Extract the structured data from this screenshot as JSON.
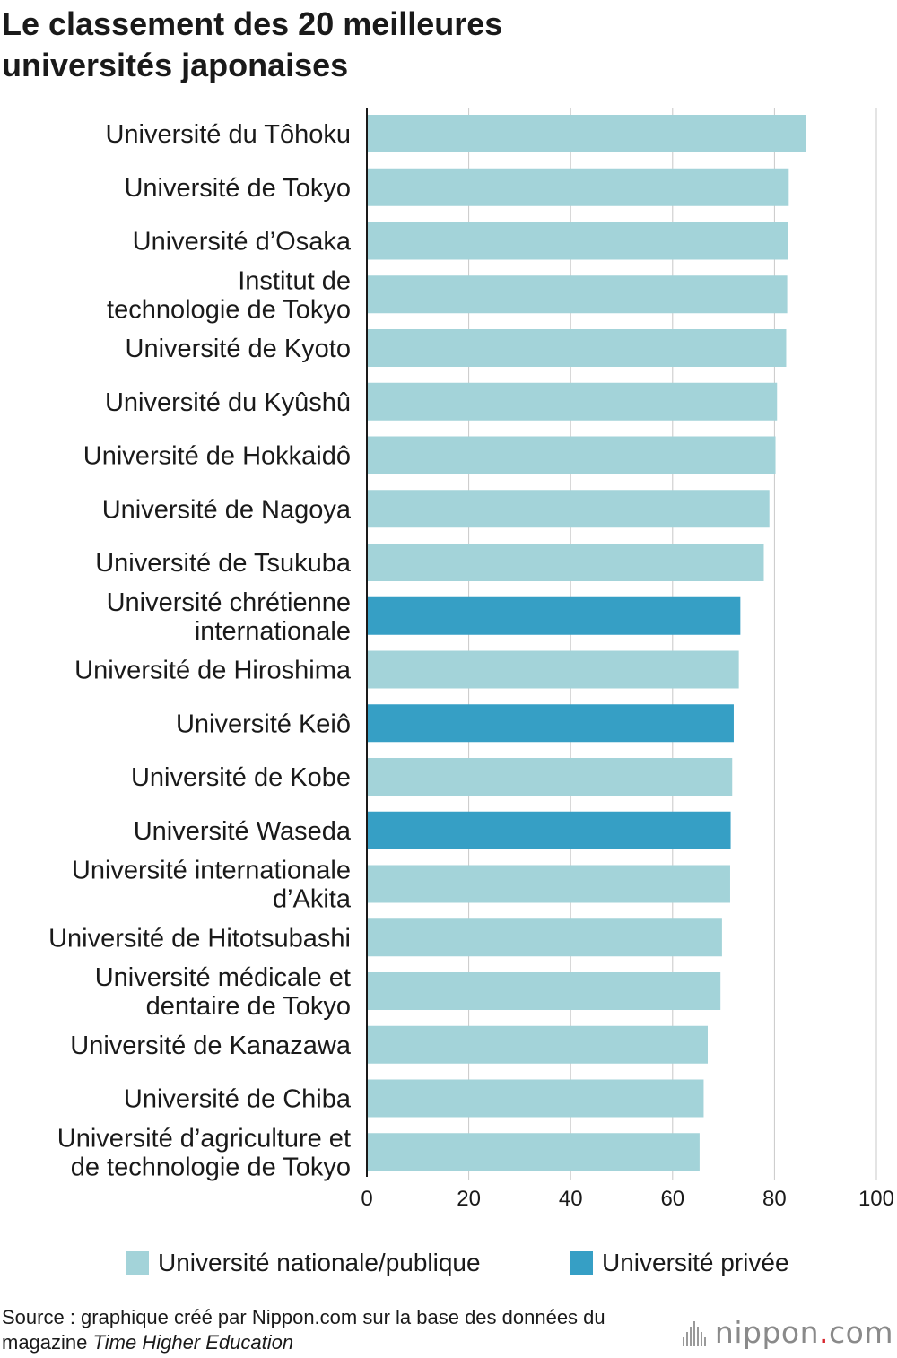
{
  "title_lines": [
    "Le classement des 20 meilleures",
    "universités japonaises"
  ],
  "chart_data": {
    "type": "bar",
    "orientation": "horizontal",
    "title": "Le classement des 20 meilleures universités japonaises",
    "categories": [
      [
        "Université du Tôhoku"
      ],
      [
        "Université de Tokyo"
      ],
      [
        "Université d’Osaka"
      ],
      [
        "Institut de",
        "technologie de Tokyo"
      ],
      [
        "Université de Kyoto"
      ],
      [
        "Université du Kyûshû"
      ],
      [
        "Université de Hokkaidô"
      ],
      [
        "Université de Nagoya"
      ],
      [
        "Université de Tsukuba"
      ],
      [
        "Université chrétienne",
        "internationale"
      ],
      [
        "Université de Hiroshima"
      ],
      [
        "Université Keiô"
      ],
      [
        "Université de Kobe"
      ],
      [
        "Université Waseda"
      ],
      [
        "Université internationale",
        "d’Akita"
      ],
      [
        "Université de Hitotsubashi"
      ],
      [
        "Université médicale et",
        "dentaire de Tokyo"
      ],
      [
        "Université de Kanazawa"
      ],
      [
        "Université de Chiba"
      ],
      [
        "Université d’agriculture et",
        "de technologie de Tokyo"
      ]
    ],
    "values": [
      86.1,
      82.8,
      82.6,
      82.5,
      82.3,
      80.5,
      80.2,
      79.0,
      77.9,
      73.3,
      73.0,
      72.0,
      71.7,
      71.4,
      71.3,
      69.7,
      69.4,
      66.9,
      66.1,
      65.3
    ],
    "types": [
      "public",
      "public",
      "public",
      "public",
      "public",
      "public",
      "public",
      "public",
      "public",
      "private",
      "public",
      "private",
      "public",
      "private",
      "public",
      "public",
      "public",
      "public",
      "public",
      "public"
    ],
    "xlim": [
      0,
      100
    ],
    "xticks": [
      "0",
      "20",
      "40",
      "60",
      "80",
      "100"
    ],
    "grid": true,
    "legend": [
      {
        "label": "Université nationale/publique",
        "color": "#a3d3d9",
        "key": "public"
      },
      {
        "label": "Université privée",
        "color": "#369fc5",
        "key": "private"
      }
    ],
    "legend_position": "bottom"
  },
  "colors": {
    "public": "#a3d3d9",
    "private": "#369fc5",
    "grid": "#c8c8c8",
    "axis": "#1a1a1a"
  },
  "source": {
    "text": "Source : graphique créé par Nippon.com sur la base des données du magazine ",
    "emphasis": "Time Higher Education"
  },
  "logo": {
    "name": "nippon",
    "dot": ".",
    "suffix": "com"
  }
}
